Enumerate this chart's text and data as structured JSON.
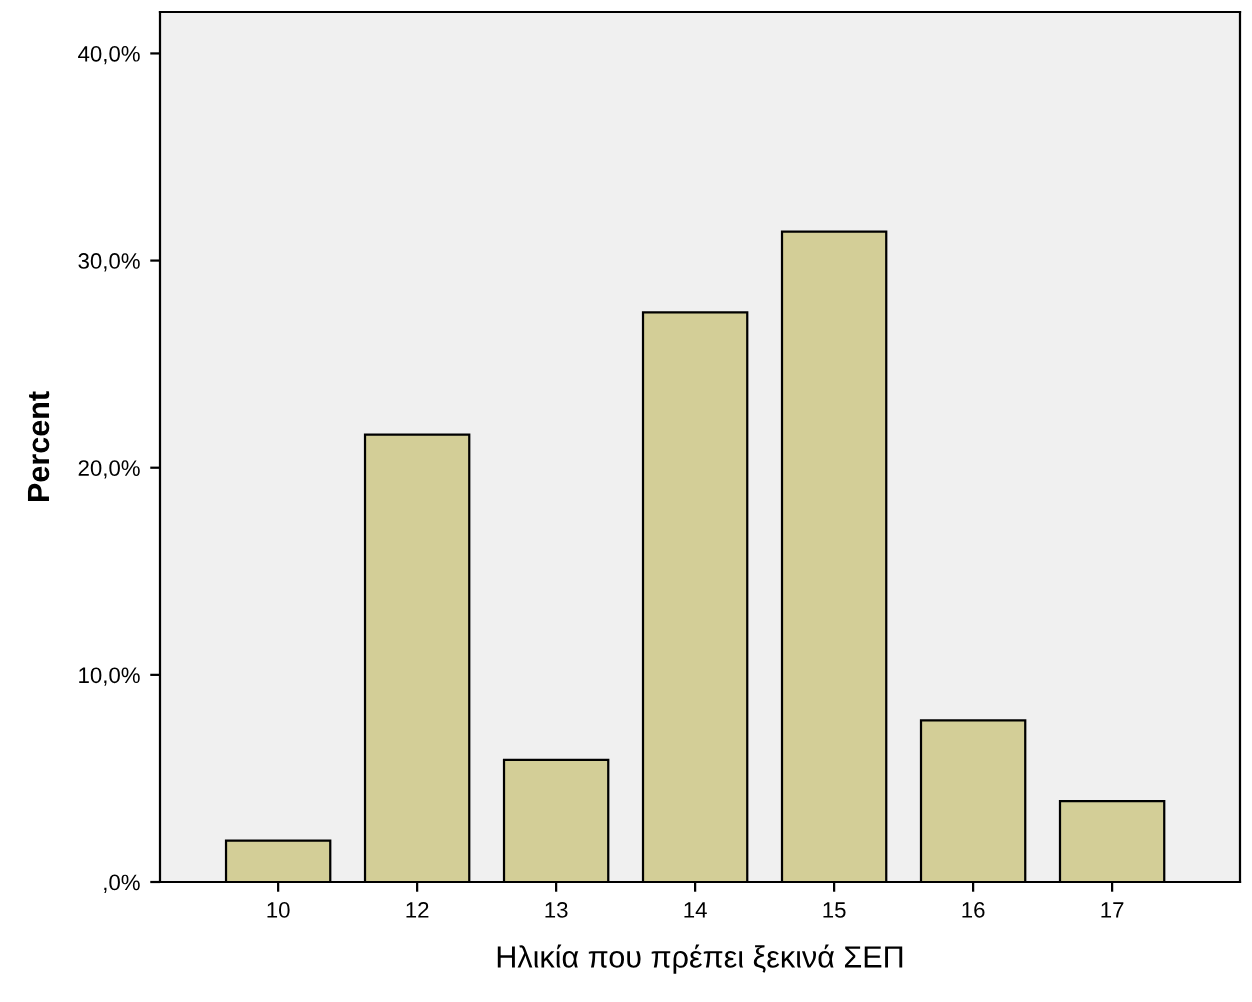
{
  "chart_data": {
    "type": "bar",
    "xlabel": "Ηλικία που πρέπει ξεκινά ΣΕΠ",
    "ylabel": "Percent",
    "categories": [
      "10",
      "12",
      "13",
      "14",
      "15",
      "16",
      "17"
    ],
    "values": [
      2.0,
      21.6,
      5.9,
      27.5,
      31.4,
      7.8,
      3.9
    ],
    "color": "#d3ce97",
    "ylim": [
      0,
      42
    ],
    "yticks": [
      {
        "value": 0,
        "label": ",0%"
      },
      {
        "value": 10,
        "label": "10,0%"
      },
      {
        "value": 20,
        "label": "20,0%"
      },
      {
        "value": 30,
        "label": "30,0%"
      },
      {
        "value": 40,
        "label": "40,0%"
      }
    ],
    "grid": false,
    "legend": false
  }
}
